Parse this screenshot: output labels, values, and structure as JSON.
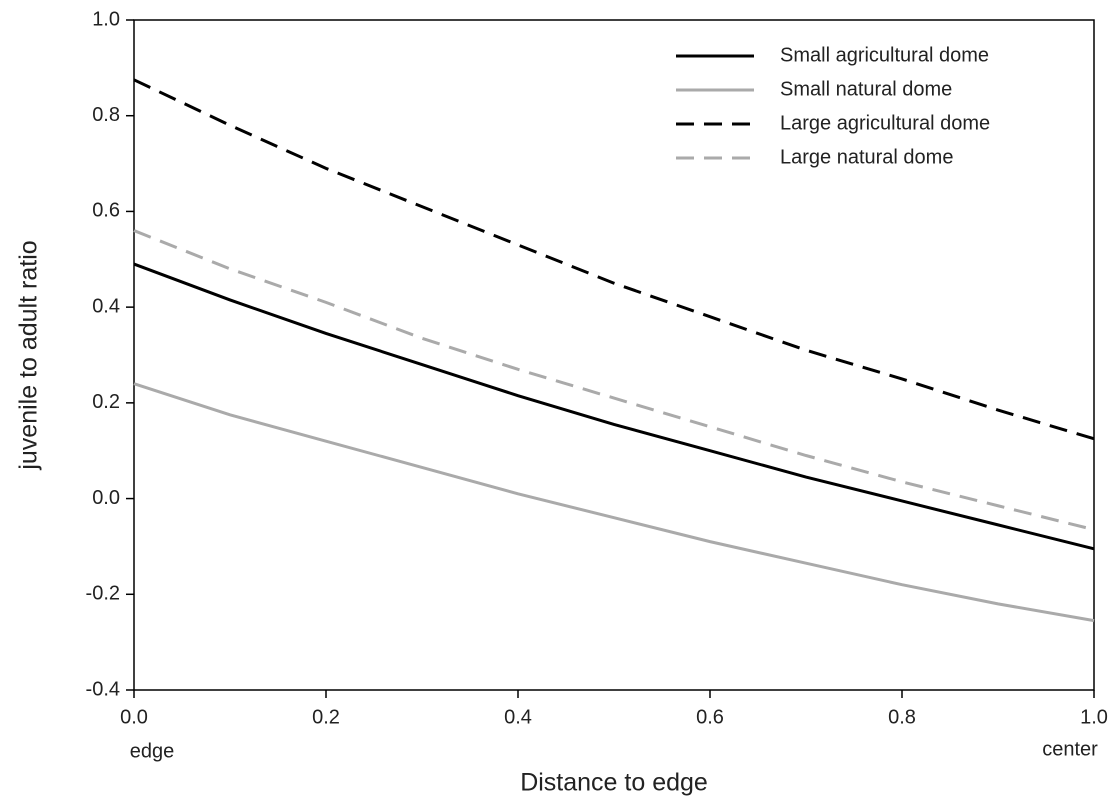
{
  "chart_data": {
    "type": "line",
    "x_label": "Distance to edge",
    "y_label": "juvenile to adult ratio",
    "annotations": [
      "edge",
      "center"
    ],
    "x": [
      0,
      0.1,
      0.2,
      0.3,
      0.4,
      0.5,
      0.6,
      0.7,
      0.8,
      0.9,
      1
    ],
    "series": [
      {
        "name": "Small agricultural dome",
        "color": "#000000",
        "style": "solid",
        "values": [
          0.49,
          0.415,
          0.345,
          0.28,
          0.215,
          0.155,
          0.1,
          0.045,
          -0.005,
          -0.055,
          -0.105
        ]
      },
      {
        "name": "Small natural dome",
        "color": "#aaaaaa",
        "style": "solid",
        "values": [
          0.24,
          0.175,
          0.12,
          0.065,
          0.01,
          -0.04,
          -0.09,
          -0.135,
          -0.18,
          -0.22,
          -0.255
        ]
      },
      {
        "name": "Large agricultural dome",
        "color": "#000000",
        "style": "dashed",
        "values": [
          0.875,
          0.78,
          0.69,
          0.61,
          0.53,
          0.45,
          0.38,
          0.31,
          0.25,
          0.185,
          0.125
        ]
      },
      {
        "name": "Large natural dome",
        "color": "#aaaaaa",
        "style": "dashed",
        "values": [
          0.56,
          0.48,
          0.41,
          0.335,
          0.27,
          0.21,
          0.15,
          0.09,
          0.035,
          -0.015,
          -0.065
        ]
      }
    ],
    "xlim": [
      0,
      1
    ],
    "xticks": [
      {
        "value": 0,
        "label": "0.0"
      },
      0.2,
      0.4,
      0.6,
      0.8,
      {
        "value": 1,
        "label": "1.0"
      }
    ],
    "ylim": [
      -0.4,
      1
    ],
    "yticks": [
      -0.4,
      -0.2,
      {
        "value": 0,
        "label": "0.0"
      },
      0.2,
      0.4,
      0.6,
      0.8,
      {
        "value": 1,
        "label": "1.0"
      }
    ],
    "legend": "top-right"
  }
}
